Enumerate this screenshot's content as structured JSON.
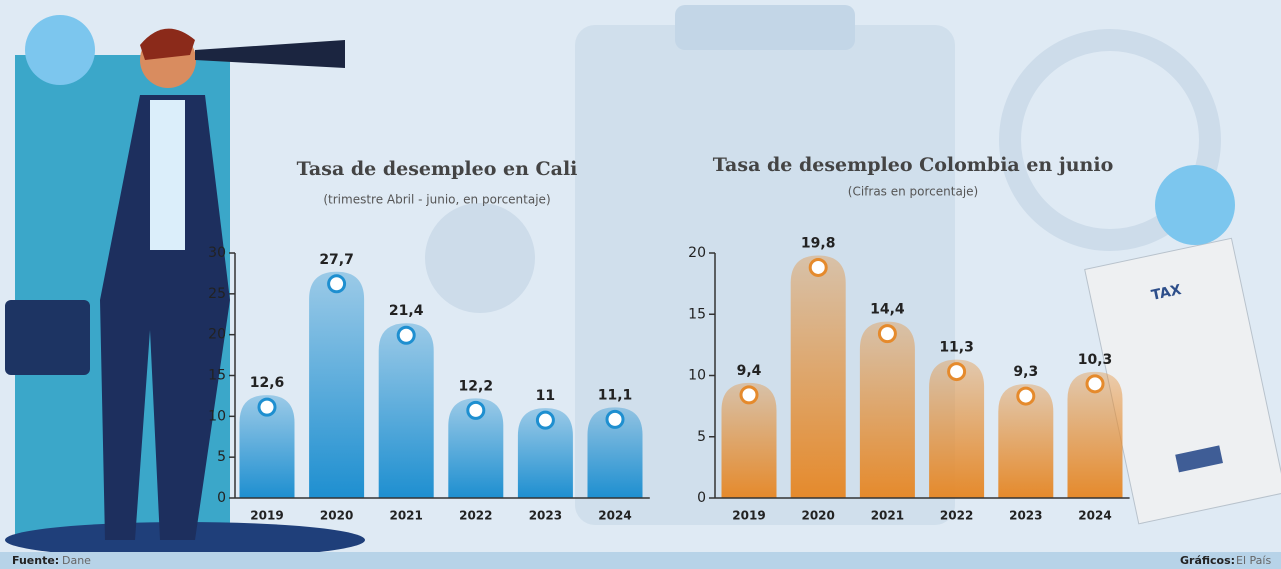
{
  "chart_data": [
    {
      "type": "bar",
      "title": "Tasa de desempleo en Cali",
      "subtitle": "(trimestre Abril - junio, en porcentaje)",
      "categories": [
        "2019",
        "2020",
        "2021",
        "2022",
        "2023",
        "2024"
      ],
      "values": [
        12.6,
        27.7,
        21.4,
        12.2,
        11,
        11.1
      ],
      "value_labels": [
        "12,6",
        "27,7",
        "21,4",
        "12,2",
        "11",
        "11,1"
      ],
      "color": "#1e8fd0",
      "ylim": [
        0,
        30
      ],
      "yticks": [
        0,
        5,
        10,
        15,
        20,
        25,
        30
      ]
    },
    {
      "type": "bar",
      "title": "Tasa de desempleo Colombia en junio",
      "subtitle": "(Cifras en porcentaje)",
      "categories": [
        "2019",
        "2020",
        "2021",
        "2022",
        "2023",
        "2024"
      ],
      "values": [
        9.4,
        19.8,
        14.4,
        11.3,
        9.3,
        10.3
      ],
      "value_labels": [
        "9,4",
        "19,8",
        "14,4",
        "11,3",
        "9,3",
        "10,3"
      ],
      "color": "#e58a2c",
      "ylim": [
        0,
        20
      ],
      "yticks": [
        0,
        5,
        10,
        15,
        20
      ]
    }
  ],
  "footer": {
    "source_label": "Fuente:",
    "source": "Dane",
    "credits_label": "Gráficos:",
    "credits": "El País"
  }
}
